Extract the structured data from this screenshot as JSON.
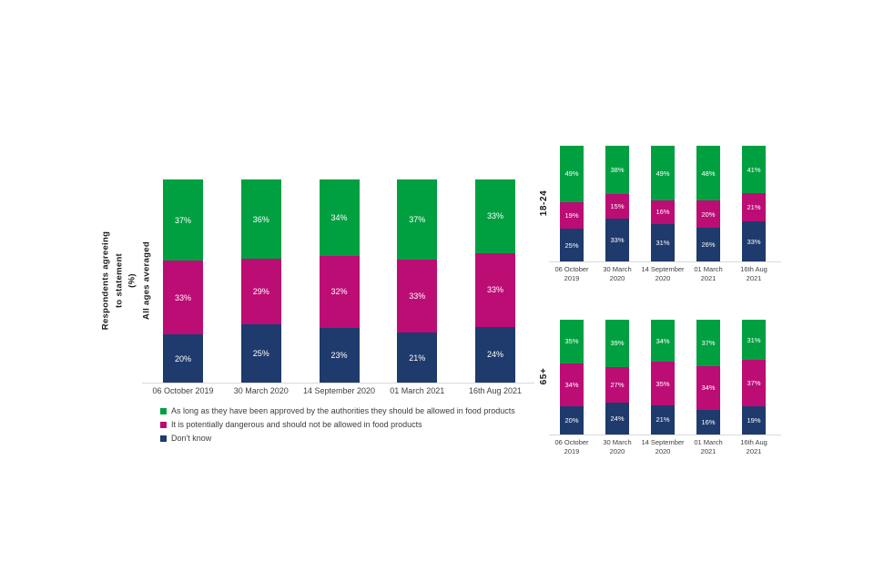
{
  "colors": {
    "approved_green": "#00A041",
    "dangerous_magenta": "#BC0D75",
    "dont_know_navy": "#1F3A6C",
    "axis_line": "#D9D9D9",
    "tick_text": "#404040",
    "segment_label": "#FFFFFF"
  },
  "axis_labels": {
    "main_y_primary": "Respondents agreeing\nto statement\n(%)",
    "main_y_secondary": "All ages averaged"
  },
  "legend": {
    "items": [
      {
        "key": "approved",
        "label": "As long as they have been approved by the authorities they should be allowed in food products"
      },
      {
        "key": "dangerous",
        "label": "It is potentially dangerous and should not be allowed in food products"
      },
      {
        "key": "dont_know",
        "label": "Don't know"
      }
    ]
  },
  "chart_data": [
    {
      "id": "all-ages",
      "type": "bar",
      "stacked": true,
      "normalized_100pct": true,
      "title": "All ages averaged",
      "group_label": "",
      "ylabel": "Respondents agreeing to statement (%)",
      "legend_position": "below",
      "grid": false,
      "categories": [
        "06 October 2019",
        "30 March 2020",
        "14 September 2020",
        "01 March 2021",
        "16th Aug 2021"
      ],
      "series": [
        {
          "key": "approved",
          "name": "As long as they have been approved by the authorities they should be allowed in food products",
          "color": "#00A041",
          "values": [
            37,
            36,
            34,
            37,
            33
          ]
        },
        {
          "key": "dangerous",
          "name": "It is potentially dangerous and should not be allowed in food products",
          "color": "#BC0D75",
          "values": [
            33,
            29,
            32,
            33,
            33
          ]
        },
        {
          "key": "dont_know",
          "name": "Don't know",
          "color": "#1F3A6C",
          "values": [
            20,
            25,
            23,
            21,
            24
          ]
        }
      ]
    },
    {
      "id": "age-18-24",
      "type": "bar",
      "stacked": true,
      "normalized_100pct": true,
      "title": "18-24",
      "group_label": "18-24",
      "grid": false,
      "categories": [
        "06 October\n2019",
        "30 March\n2020",
        "14 September\n2020",
        "01 March\n2021",
        "16th Aug\n2021"
      ],
      "series": [
        {
          "key": "approved",
          "name": "As long as they have been approved by the authorities they should be allowed in food products",
          "color": "#00A041",
          "values": [
            49,
            38,
            49,
            48,
            41
          ]
        },
        {
          "key": "dangerous",
          "name": "It is potentially dangerous and should not be allowed in food products",
          "color": "#BC0D75",
          "values": [
            19,
            15,
            16,
            20,
            21
          ]
        },
        {
          "key": "dont_know",
          "name": "Don't know",
          "color": "#1F3A6C",
          "values": [
            25,
            33,
            31,
            26,
            33
          ]
        }
      ]
    },
    {
      "id": "age-65-plus",
      "type": "bar",
      "stacked": true,
      "normalized_100pct": true,
      "title": "65+",
      "group_label": "65+",
      "grid": false,
      "categories": [
        "06 October\n2019",
        "30 March\n2020",
        "14 September\n2020",
        "01 March\n2021",
        "16th Aug\n2021"
      ],
      "series": [
        {
          "key": "approved",
          "name": "As long as they have been approved by the authorities they should be allowed in food products",
          "color": "#00A041",
          "values": [
            35,
            39,
            34,
            37,
            31
          ]
        },
        {
          "key": "dangerous",
          "name": "It is potentially dangerous and should not be allowed in food products",
          "color": "#BC0D75",
          "values": [
            34,
            27,
            35,
            34,
            37
          ]
        },
        {
          "key": "dont_know",
          "name": "Don't know",
          "color": "#1F3A6C",
          "values": [
            20,
            24,
            21,
            16,
            19
          ]
        }
      ]
    }
  ]
}
